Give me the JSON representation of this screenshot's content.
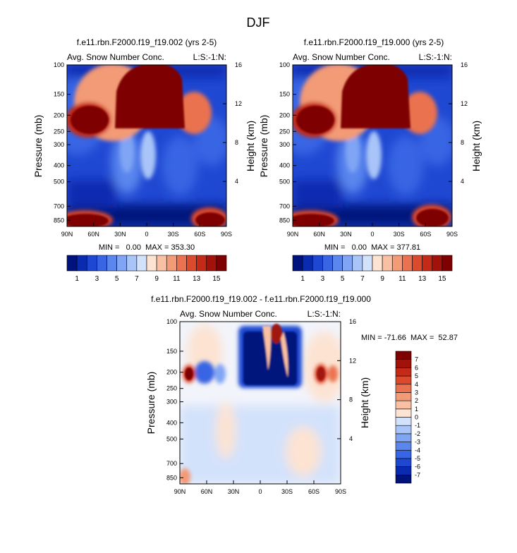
{
  "page_title": "DJF",
  "chart_data": [
    {
      "type": "heatmap",
      "title": "f.e11.rbn.F2000.f19_f19.002 (yrs 2-5)",
      "left_label": "Avg. Snow Number Conc.",
      "right_label": "L:S:-1:N:",
      "xlabel": "",
      "ylabel": "Pressure (mb)",
      "y2label": "Height (km)",
      "x_ticks": [
        "90N",
        "60N",
        "30N",
        "0",
        "30S",
        "60S",
        "90S"
      ],
      "x_values": [
        90,
        60,
        30,
        0,
        -30,
        -60,
        -90
      ],
      "xlim": [
        90,
        -90
      ],
      "y_ticks": [
        "100",
        "150",
        "200",
        "250",
        "300",
        "400",
        "500",
        "700",
        "850"
      ],
      "y_values": [
        100,
        150,
        200,
        250,
        300,
        400,
        500,
        700,
        850
      ],
      "ylim": [
        100,
        925
      ],
      "y2_ticks": [
        "16",
        "12",
        "8",
        "4"
      ],
      "y2_values": [
        16,
        12,
        8,
        4
      ],
      "stats": "MIN =   0.00  MAX = 353.30",
      "colorbar": {
        "orientation": "horizontal",
        "levels": [
          1,
          2,
          3,
          4,
          5,
          6,
          7,
          8,
          9,
          10,
          11,
          12,
          13,
          14,
          15
        ],
        "tick_labels": [
          "1",
          "3",
          "5",
          "7",
          "9",
          "11",
          "13",
          "15"
        ],
        "colors": [
          "#00137d",
          "#0a2bb0",
          "#1f48d2",
          "#3865e4",
          "#5a86ee",
          "#80a5f4",
          "#a8c4f8",
          "#d3e2fb",
          "#fde3d2",
          "#f9c0a3",
          "#f39a76",
          "#ea7250",
          "#dc4a2e",
          "#c42a17",
          "#a1120a",
          "#7e0000"
        ]
      }
    },
    {
      "type": "heatmap",
      "title": "f.e11.rbn.F2000.f19_f19.000 (yrs 2-5)",
      "left_label": "Avg. Snow Number Conc.",
      "right_label": "L:S:-1:N:",
      "xlabel": "",
      "ylabel": "Pressure (mb)",
      "y2label": "Height (km)",
      "x_ticks": [
        "90N",
        "60N",
        "30N",
        "0",
        "30S",
        "60S",
        "90S"
      ],
      "x_values": [
        90,
        60,
        30,
        0,
        -30,
        -60,
        -90
      ],
      "xlim": [
        90,
        -90
      ],
      "y_ticks": [
        "100",
        "150",
        "200",
        "250",
        "300",
        "400",
        "500",
        "700",
        "850"
      ],
      "y_values": [
        100,
        150,
        200,
        250,
        300,
        400,
        500,
        700,
        850
      ],
      "ylim": [
        100,
        925
      ],
      "y2_ticks": [
        "16",
        "12",
        "8",
        "4"
      ],
      "y2_values": [
        16,
        12,
        8,
        4
      ],
      "stats": "MIN =   0.00  MAX = 377.81",
      "colorbar": {
        "orientation": "horizontal",
        "levels": [
          1,
          2,
          3,
          4,
          5,
          6,
          7,
          8,
          9,
          10,
          11,
          12,
          13,
          14,
          15
        ],
        "tick_labels": [
          "1",
          "3",
          "5",
          "7",
          "9",
          "11",
          "13",
          "15"
        ],
        "colors": [
          "#00137d",
          "#0a2bb0",
          "#1f48d2",
          "#3865e4",
          "#5a86ee",
          "#80a5f4",
          "#a8c4f8",
          "#d3e2fb",
          "#fde3d2",
          "#f9c0a3",
          "#f39a76",
          "#ea7250",
          "#dc4a2e",
          "#c42a17",
          "#a1120a",
          "#7e0000"
        ]
      }
    },
    {
      "type": "heatmap",
      "title": "f.e11.rbn.F2000.f19_f19.002 - f.e11.rbn.F2000.f19_f19.000",
      "left_label": "Avg. Snow Number Conc.",
      "right_label": "L:S:-1:N:",
      "xlabel": "",
      "ylabel": "Pressure (mb)",
      "y2label": "Height (km)",
      "x_ticks": [
        "90N",
        "60N",
        "30N",
        "0",
        "30S",
        "60S",
        "90S"
      ],
      "x_values": [
        90,
        60,
        30,
        0,
        -30,
        -60,
        -90
      ],
      "xlim": [
        90,
        -90
      ],
      "y_ticks": [
        "100",
        "150",
        "200",
        "250",
        "300",
        "400",
        "500",
        "700",
        "850"
      ],
      "y_values": [
        100,
        150,
        200,
        250,
        300,
        400,
        500,
        700,
        850
      ],
      "ylim": [
        100,
        925
      ],
      "y2_ticks": [
        "16",
        "12",
        "8",
        "4"
      ],
      "y2_values": [
        16,
        12,
        8,
        4
      ],
      "stats": "MIN = -71.66  MAX =  52.87",
      "colorbar": {
        "orientation": "vertical",
        "levels": [
          -7,
          -6,
          -5,
          -4,
          -3,
          -2,
          -1,
          0,
          1,
          2,
          3,
          4,
          5,
          6,
          7
        ],
        "tick_labels": [
          "-7",
          "-6",
          "-5",
          "-4",
          "-3",
          "-2",
          "-1",
          "0",
          "1",
          "2",
          "3",
          "4",
          "5",
          "6",
          "7"
        ],
        "colors": [
          "#00137d",
          "#0a2bb0",
          "#1f48d2",
          "#3865e4",
          "#5a86ee",
          "#80a5f4",
          "#a8c4f8",
          "#d3e2fb",
          "#fde3d2",
          "#f9c0a3",
          "#f39a76",
          "#ea7250",
          "#dc4a2e",
          "#c42a17",
          "#a1120a",
          "#7e0000"
        ]
      }
    }
  ]
}
